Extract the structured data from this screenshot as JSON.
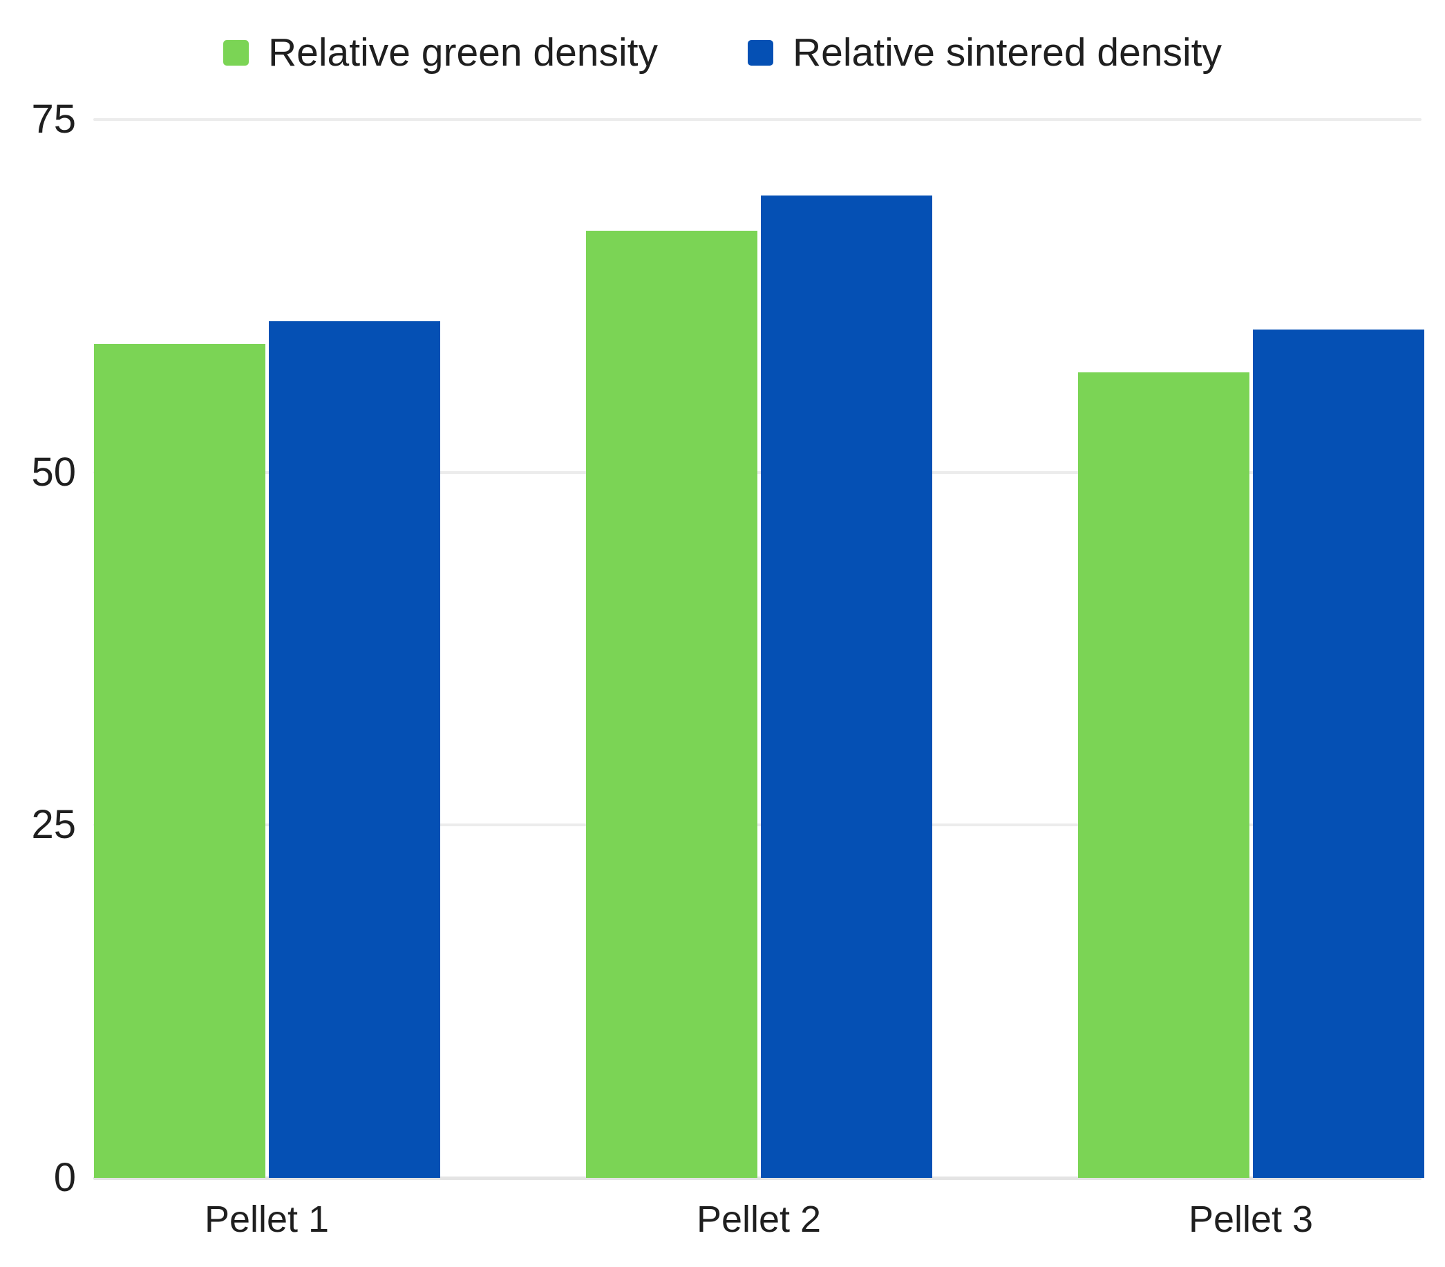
{
  "chart_data": {
    "type": "bar",
    "title": "",
    "xlabel": "",
    "ylabel": "",
    "categories": [
      "Pellet 1",
      "Pellet 2",
      "Pellet 3"
    ],
    "series": [
      {
        "name": "Relative green density",
        "color": "#7BD455",
        "values": [
          59.1,
          67.1,
          57.1
        ]
      },
      {
        "name": "Relative sintered density",
        "color": "#0550B4",
        "values": [
          60.7,
          69.6,
          60.1
        ]
      }
    ],
    "ylim": [
      0,
      75
    ],
    "yticks": [
      0,
      25,
      50,
      75
    ],
    "grid": true,
    "legend_position": "top-center",
    "background_color": "#FFFFFF",
    "gridline_color": "#ECECEC",
    "axis_line_color": "#E4E4E4",
    "text_color": "#1F1F1F"
  }
}
